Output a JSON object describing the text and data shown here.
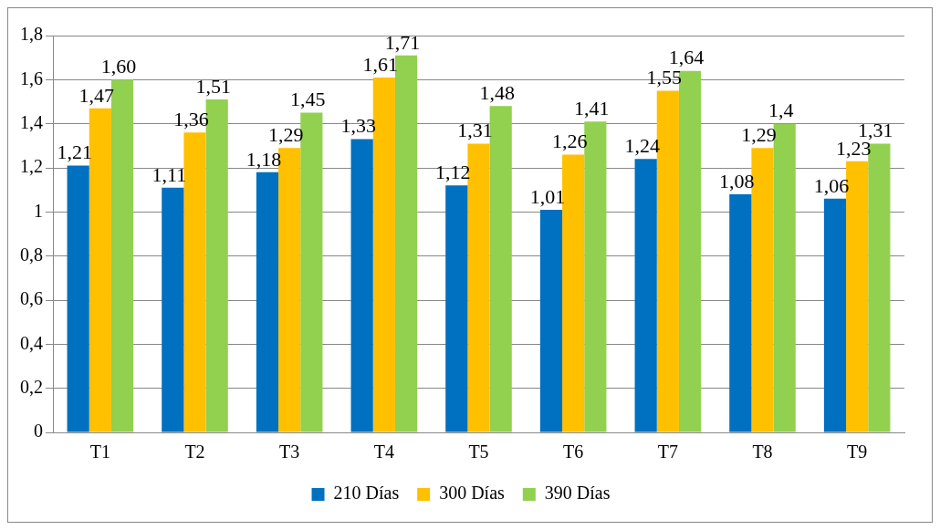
{
  "chart_data": {
    "type": "bar",
    "categories": [
      "T1",
      "T2",
      "T3",
      "T4",
      "T5",
      "T6",
      "T7",
      "T8",
      "T9"
    ],
    "series": [
      {
        "name": "210 Días",
        "color": "#0070c0",
        "values": [
          1.21,
          1.11,
          1.18,
          1.33,
          1.12,
          1.01,
          1.24,
          1.08,
          1.06
        ],
        "value_labels": [
          "1,21",
          "1,11",
          "1,18",
          "1,33",
          "1,12",
          "1,01",
          "1,24",
          "1,08",
          "1,06"
        ]
      },
      {
        "name": "300 Días",
        "color": "#ffc000",
        "values": [
          1.47,
          1.36,
          1.29,
          1.61,
          1.31,
          1.26,
          1.55,
          1.29,
          1.23
        ],
        "value_labels": [
          "1,47",
          "1,36",
          "1,29",
          "1,61",
          "1,31",
          "1,26",
          "1,55",
          "1,29",
          "1,23"
        ]
      },
      {
        "name": "390 Días",
        "color": "#92d050",
        "values": [
          1.6,
          1.51,
          1.45,
          1.71,
          1.48,
          1.41,
          1.64,
          1.4,
          1.31
        ],
        "value_labels": [
          "1,60",
          "1,51",
          "1,45",
          "1,71",
          "1,48",
          "1,41",
          "1,64",
          "1,4",
          "1,31"
        ]
      }
    ],
    "ylim": [
      0,
      1.8
    ],
    "yticks": [
      0,
      {
        "value": 0.2,
        "label": "0,2"
      },
      {
        "value": 0.4,
        "label": "0,4"
      },
      {
        "value": 0.6,
        "label": "0,6"
      },
      {
        "value": 0.8,
        "label": "0,8"
      },
      1,
      {
        "value": 1.2,
        "label": "1,2"
      },
      {
        "value": 1.4,
        "label": "1,4"
      },
      {
        "value": 1.6,
        "label": "1,6"
      },
      {
        "value": 1.8,
        "label": "1,8"
      }
    ],
    "grid": "y",
    "legend": "bottom"
  }
}
